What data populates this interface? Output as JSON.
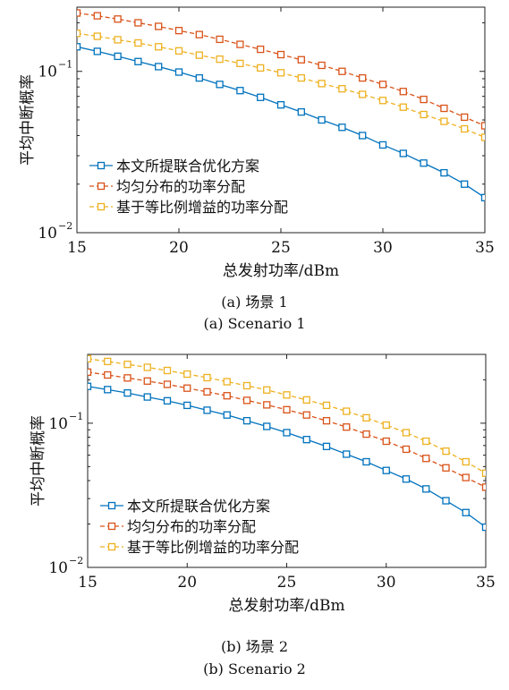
{
  "chart_data": [
    {
      "type": "line",
      "ylog": true,
      "xlabel": "总发射功率/dBm",
      "ylabel": "平均中断概率",
      "xlim": [
        15,
        35
      ],
      "ylim": [
        0.01,
        0.25
      ],
      "xticks": [
        "15",
        "20",
        "25",
        "30",
        "35"
      ],
      "yticks": [
        {
          "base": "10",
          "exp": "−2",
          "value": 0.01
        },
        {
          "base": "10",
          "exp": "−1",
          "value": 0.1
        }
      ],
      "legend_position": "bottom-left",
      "x": [
        15,
        16,
        17,
        18,
        19,
        20,
        21,
        22,
        23,
        24,
        25,
        26,
        27,
        28,
        29,
        30,
        31,
        32,
        33,
        34,
        35
      ],
      "series": [
        {
          "name": "本文所提联合优化方案",
          "color": "#0072bd",
          "dash": false,
          "values": [
            0.142,
            0.133,
            0.124,
            0.115,
            0.107,
            0.099,
            0.091,
            0.083,
            0.076,
            0.069,
            0.062,
            0.056,
            0.05,
            0.045,
            0.04,
            0.035,
            0.031,
            0.027,
            0.0235,
            0.02,
            0.0165
          ]
        },
        {
          "name": "均匀分布的功率分配",
          "color": "#d95319",
          "dash": true,
          "values": [
            0.23,
            0.221,
            0.211,
            0.2,
            0.19,
            0.179,
            0.169,
            0.158,
            0.147,
            0.137,
            0.127,
            0.118,
            0.109,
            0.1,
            0.091,
            0.083,
            0.075,
            0.067,
            0.059,
            0.052,
            0.046
          ]
        },
        {
          "name": "基于等比例增益的功率分配",
          "color": "#edb120",
          "dash": true,
          "values": [
            0.172,
            0.165,
            0.157,
            0.15,
            0.142,
            0.134,
            0.126,
            0.119,
            0.112,
            0.105,
            0.098,
            0.091,
            0.084,
            0.078,
            0.072,
            0.066,
            0.06,
            0.054,
            0.049,
            0.044,
            0.039
          ]
        }
      ]
    },
    {
      "type": "line",
      "ylog": true,
      "xlabel": "总发射功率/dBm",
      "ylabel": "平均中断概率",
      "xlim": [
        15,
        35
      ],
      "ylim": [
        0.01,
        0.3
      ],
      "xticks": [
        "15",
        "20",
        "25",
        "30",
        "35"
      ],
      "yticks": [
        {
          "base": "10",
          "exp": "−2",
          "value": 0.01
        },
        {
          "base": "10",
          "exp": "−1",
          "value": 0.1
        }
      ],
      "legend_position": "bottom-left",
      "x": [
        15,
        16,
        17,
        18,
        19,
        20,
        21,
        22,
        23,
        24,
        25,
        26,
        27,
        28,
        29,
        30,
        31,
        32,
        33,
        34,
        35
      ],
      "series": [
        {
          "name": "本文所提联合优化方案",
          "color": "#0072bd",
          "dash": false,
          "values": [
            0.18,
            0.171,
            0.162,
            0.152,
            0.143,
            0.133,
            0.123,
            0.114,
            0.104,
            0.095,
            0.086,
            0.077,
            0.069,
            0.061,
            0.054,
            0.047,
            0.041,
            0.035,
            0.029,
            0.024,
            0.019
          ]
        },
        {
          "name": "均匀分布的功率分配",
          "color": "#d95319",
          "dash": true,
          "values": [
            0.226,
            0.216,
            0.206,
            0.196,
            0.186,
            0.175,
            0.165,
            0.155,
            0.144,
            0.134,
            0.124,
            0.114,
            0.104,
            0.094,
            0.084,
            0.075,
            0.066,
            0.057,
            0.049,
            0.042,
            0.036
          ]
        },
        {
          "name": "基于等比例增益的功率分配",
          "color": "#edb120",
          "dash": true,
          "values": [
            0.28,
            0.268,
            0.256,
            0.244,
            0.232,
            0.219,
            0.207,
            0.194,
            0.182,
            0.17,
            0.157,
            0.145,
            0.133,
            0.121,
            0.109,
            0.097,
            0.086,
            0.075,
            0.064,
            0.054,
            0.045
          ]
        }
      ]
    }
  ],
  "captions": {
    "a_cn": "(a) 场景 1",
    "a_en": "(a) Scenario 1",
    "b_cn": "(b) 场景 2",
    "b_en": "(b) Scenario 2"
  }
}
